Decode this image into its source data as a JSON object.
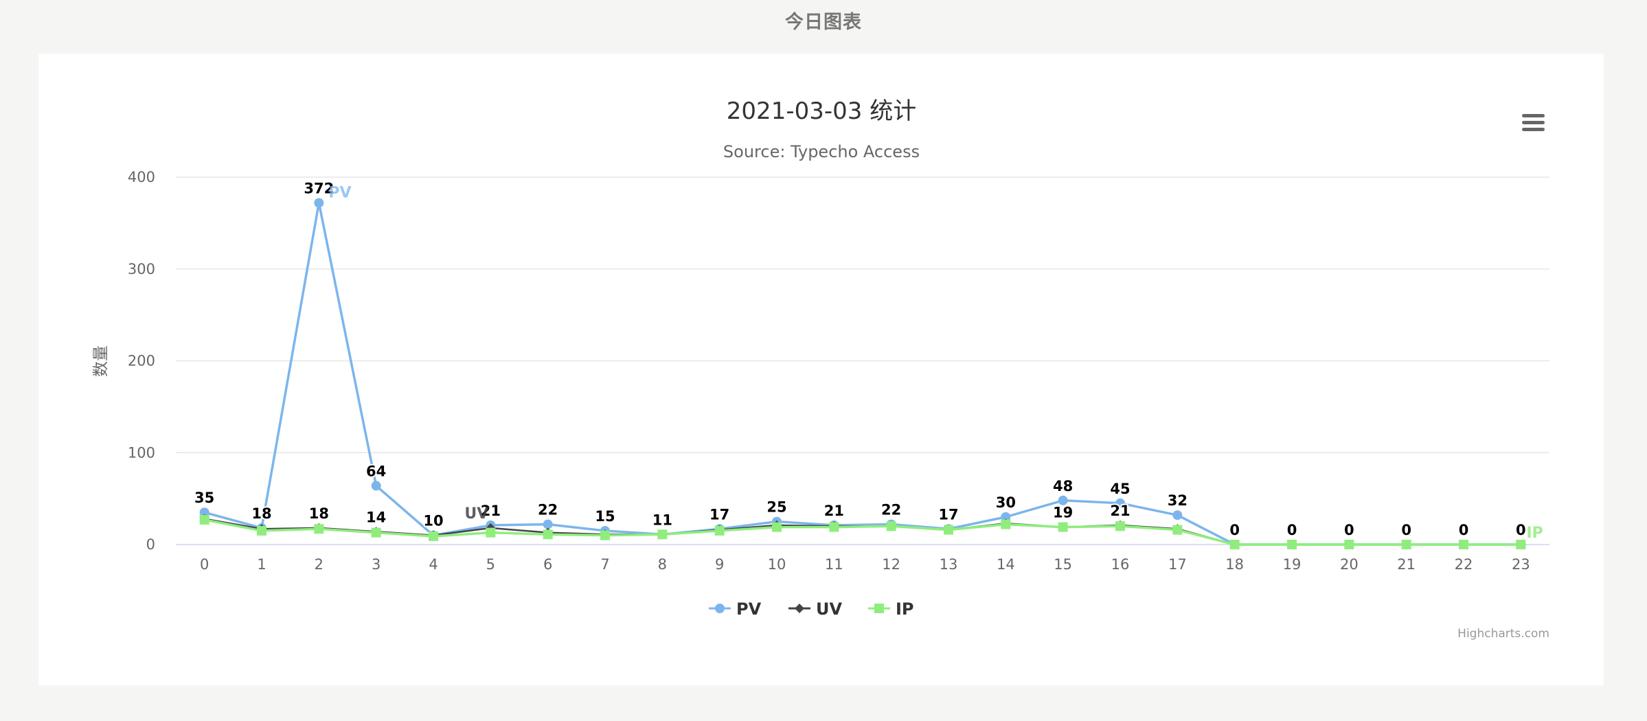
{
  "page": {
    "heading": "今日图表"
  },
  "credits": "Highcharts.com",
  "menu_icon": "hamburger-menu-icon",
  "colors": {
    "background": "#f5f5f3",
    "card": "#ffffff",
    "pv": "#7cb5ec",
    "uv": "#434348",
    "ip": "#90ed7d",
    "grid": "#e6e6e6"
  },
  "chart_data": {
    "type": "line",
    "title": "2021-03-03 统计",
    "subtitle": "Source: Typecho Access",
    "ylabel": "数量",
    "xlabel": "",
    "ylim": [
      0,
      400
    ],
    "yticks": [
      0,
      100,
      200,
      300,
      400
    ],
    "grid": true,
    "legend_position": "bottom-center",
    "categories": [
      "0",
      "1",
      "2",
      "3",
      "4",
      "5",
      "6",
      "7",
      "8",
      "9",
      "10",
      "11",
      "12",
      "13",
      "14",
      "15",
      "16",
      "17",
      "18",
      "19",
      "20",
      "21",
      "22",
      "23"
    ],
    "series": [
      {
        "name": "PV",
        "marker": "circle",
        "values": [
          35,
          18,
          372,
          64,
          10,
          21,
          22,
          15,
          11,
          17,
          25,
          21,
          22,
          17,
          30,
          48,
          45,
          32,
          0,
          0,
          0,
          0,
          0,
          0
        ]
      },
      {
        "name": "UV",
        "marker": "diamond",
        "values": [
          28,
          17,
          18,
          14,
          10,
          18,
          13,
          11,
          11,
          16,
          21,
          20,
          20,
          16,
          23,
          19,
          21,
          17,
          0,
          0,
          0,
          0,
          0,
          0
        ]
      },
      {
        "name": "IP",
        "marker": "square",
        "values": [
          27,
          15,
          17,
          13,
          9,
          13,
          11,
          10,
          11,
          15,
          19,
          19,
          20,
          16,
          22,
          19,
          20,
          16,
          0,
          0,
          0,
          0,
          0,
          0
        ]
      }
    ],
    "data_labels": [
      {
        "x": 0,
        "text": "35"
      },
      {
        "x": 1,
        "text": "18"
      },
      {
        "x": 2,
        "text": "372"
      },
      {
        "x": 3,
        "text": "64"
      },
      {
        "x": 3,
        "text": "14"
      },
      {
        "x": 2,
        "text": "18"
      },
      {
        "x": 4,
        "text": "10"
      },
      {
        "x": 5,
        "text": "21"
      },
      {
        "x": 6,
        "text": "22"
      },
      {
        "x": 7,
        "text": "15"
      },
      {
        "x": 8,
        "text": "11"
      },
      {
        "x": 9,
        "text": "17"
      },
      {
        "x": 10,
        "text": "25"
      },
      {
        "x": 11,
        "text": "21"
      },
      {
        "x": 12,
        "text": "22"
      },
      {
        "x": 13,
        "text": "17"
      },
      {
        "x": 14,
        "text": "30"
      },
      {
        "x": 15,
        "text": "48"
      },
      {
        "x": 15,
        "text": "19"
      },
      {
        "x": 16,
        "text": "45"
      },
      {
        "x": 16,
        "text": "21"
      },
      {
        "x": 17,
        "text": "32"
      },
      {
        "x": 18,
        "text": "0"
      },
      {
        "x": 19,
        "text": "0"
      },
      {
        "x": 20,
        "text": "0"
      },
      {
        "x": 21,
        "text": "0"
      },
      {
        "x": 22,
        "text": "0"
      },
      {
        "x": 23,
        "text": "0"
      }
    ],
    "series_end_labels": [
      {
        "series": "PV",
        "x": 2,
        "text": "PV"
      },
      {
        "series": "UV",
        "x": 5,
        "text": "UV"
      },
      {
        "series": "IP",
        "x": 23,
        "text": "IP"
      }
    ]
  }
}
